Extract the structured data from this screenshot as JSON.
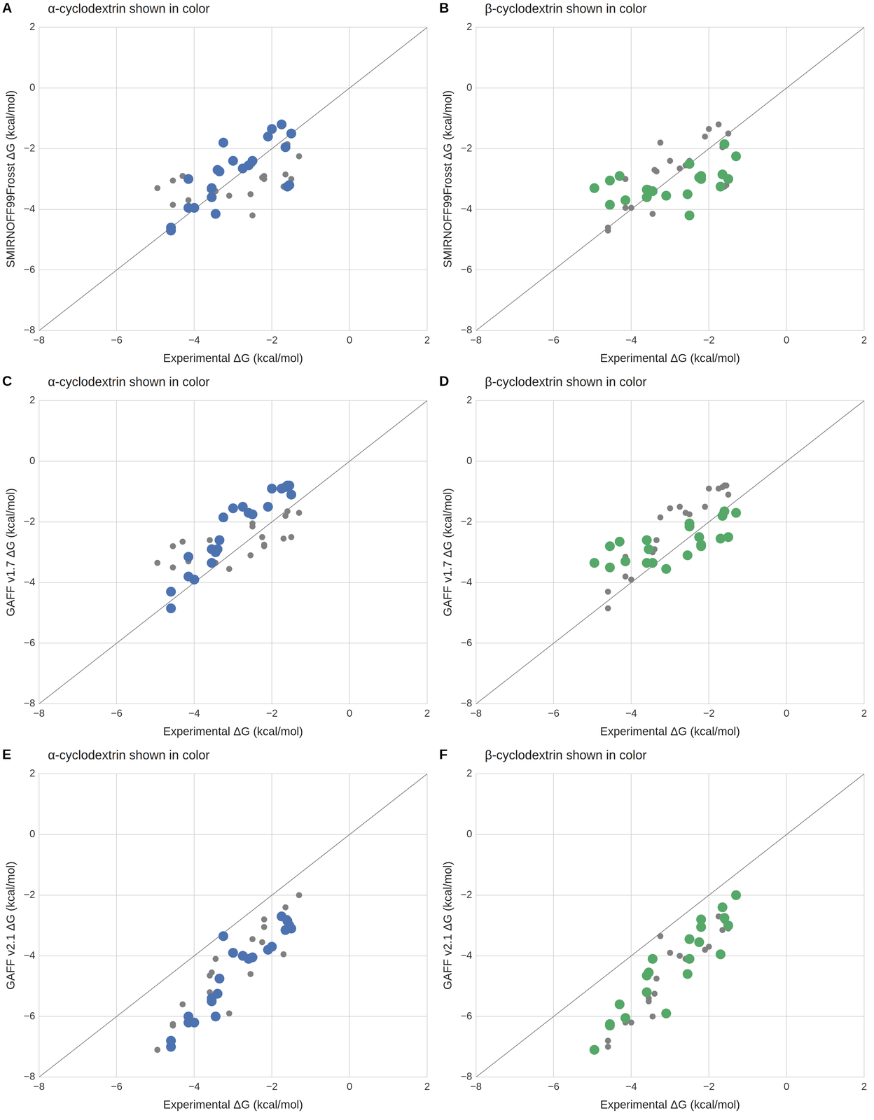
{
  "chart_data": [
    {
      "type": "scatter",
      "panel": "A",
      "title": "α-cyclodextrin shown in color",
      "x_label": "Experimental ΔG (kcal/mol)",
      "y_label": "SMIRNOFF99Frosst ΔG (kcal/mol)",
      "xlim": [
        -8,
        2
      ],
      "ylim": [
        -8,
        2
      ],
      "xticks": [
        {
          "value": -8,
          "label": "−8"
        },
        {
          "value": -6,
          "label": "−6"
        },
        {
          "value": -4,
          "label": "−4"
        },
        {
          "value": -2,
          "label": "−2"
        },
        0,
        2
      ],
      "yticks": [
        {
          "value": -8,
          "label": "−8"
        },
        {
          "value": -6,
          "label": "−6"
        },
        {
          "value": -4,
          "label": "−4"
        },
        {
          "value": -2,
          "label": "−2"
        },
        0,
        2
      ],
      "grid": true,
      "series": [
        {
          "color": "#808080",
          "x": [
            -4.95,
            -4.55,
            -4.55,
            -4.3,
            -4.15,
            -3.6,
            -3.6,
            -3.45,
            -3.55,
            -3.1,
            -2.55,
            -2.5,
            -2.5,
            -2.25,
            -2.2,
            -2.2,
            -1.7,
            -1.65,
            -1.6,
            -1.5,
            -1.3
          ],
          "values": [
            -3.3,
            -3.05,
            -3.85,
            -2.9,
            -3.7,
            -3.35,
            -3.6,
            -3.4,
            -3.45,
            -3.55,
            -3.5,
            -2.5,
            -4.2,
            -2.95,
            -2.9,
            -3.0,
            -3.25,
            -2.85,
            -1.85,
            -3.0,
            -2.25
          ]
        },
        {
          "color": "#4c72b0",
          "x": [
            -4.6,
            -4.6,
            -4.15,
            -4.15,
            -4.0,
            -3.55,
            -3.55,
            -3.45,
            -3.4,
            -3.35,
            -3.25,
            -3.0,
            -2.75,
            -2.6,
            -2.5,
            -2.1,
            -2.0,
            -1.75,
            -1.65,
            -1.6,
            -1.5,
            -1.55
          ],
          "values": [
            -4.6,
            -4.7,
            -3.0,
            -3.95,
            -3.95,
            -3.3,
            -3.6,
            -4.15,
            -2.7,
            -2.75,
            -1.8,
            -2.4,
            -2.65,
            -2.55,
            -2.4,
            -1.6,
            -1.35,
            -1.2,
            -1.95,
            -3.25,
            -1.5,
            -3.2
          ]
        }
      ]
    },
    {
      "type": "scatter",
      "panel": "B",
      "title": "β-cyclodextrin shown in color",
      "x_label": "Experimental ΔG (kcal/mol)",
      "y_label": "SMIRNOFF99Frosst ΔG (kcal/mol)",
      "xlim": [
        -8,
        2
      ],
      "ylim": [
        -8,
        2
      ],
      "xticks": [
        {
          "value": -8,
          "label": "−8"
        },
        {
          "value": -6,
          "label": "−6"
        },
        {
          "value": -4,
          "label": "−4"
        },
        {
          "value": -2,
          "label": "−2"
        },
        0,
        2
      ],
      "yticks": [
        {
          "value": -8,
          "label": "−8"
        },
        {
          "value": -6,
          "label": "−6"
        },
        {
          "value": -4,
          "label": "−4"
        },
        {
          "value": -2,
          "label": "−2"
        },
        0,
        2
      ],
      "grid": true,
      "series": [
        {
          "color": "#808080",
          "x": [
            -4.6,
            -4.6,
            -4.15,
            -4.15,
            -4.0,
            -3.55,
            -3.55,
            -3.45,
            -3.4,
            -3.35,
            -3.25,
            -3.0,
            -2.75,
            -2.6,
            -2.5,
            -2.1,
            -2.0,
            -1.75,
            -1.65,
            -1.6,
            -1.5,
            -1.55
          ],
          "values": [
            -4.6,
            -4.7,
            -3.0,
            -3.95,
            -3.95,
            -3.3,
            -3.6,
            -4.15,
            -2.7,
            -2.75,
            -1.8,
            -2.4,
            -2.65,
            -2.55,
            -2.4,
            -1.6,
            -1.35,
            -1.2,
            -1.95,
            -3.25,
            -1.5,
            -3.2
          ]
        },
        {
          "color": "#55a868",
          "x": [
            -4.95,
            -4.55,
            -4.55,
            -4.3,
            -4.15,
            -3.6,
            -3.6,
            -3.45,
            -3.55,
            -3.1,
            -2.55,
            -2.5,
            -2.5,
            -2.25,
            -2.2,
            -2.2,
            -1.7,
            -1.65,
            -1.6,
            -1.5,
            -1.3
          ],
          "values": [
            -3.3,
            -3.05,
            -3.85,
            -2.9,
            -3.7,
            -3.35,
            -3.6,
            -3.4,
            -3.45,
            -3.55,
            -3.5,
            -2.5,
            -4.2,
            -2.95,
            -2.9,
            -3.0,
            -3.25,
            -2.85,
            -1.85,
            -3.0,
            -2.25
          ]
        }
      ]
    },
    {
      "type": "scatter",
      "panel": "C",
      "title": "α-cyclodextrin shown in color",
      "x_label": "Experimental ΔG (kcal/mol)",
      "y_label": "GAFF v1.7 ΔG (kcal/mol)",
      "xlim": [
        -8,
        2
      ],
      "ylim": [
        -8,
        2
      ],
      "xticks": [
        {
          "value": -8,
          "label": "−8"
        },
        {
          "value": -6,
          "label": "−6"
        },
        {
          "value": -4,
          "label": "−4"
        },
        {
          "value": -2,
          "label": "−2"
        },
        0,
        2
      ],
      "yticks": [
        {
          "value": -8,
          "label": "−8"
        },
        {
          "value": -6,
          "label": "−6"
        },
        {
          "value": -4,
          "label": "−4"
        },
        {
          "value": -2,
          "label": "−2"
        },
        0,
        2
      ],
      "grid": true,
      "series": [
        {
          "color": "#808080",
          "x": [
            -4.95,
            -4.55,
            -4.55,
            -4.3,
            -4.15,
            -3.6,
            -3.6,
            -3.45,
            -3.55,
            -3.1,
            -2.55,
            -2.5,
            -2.5,
            -2.25,
            -2.2,
            -2.2,
            -1.7,
            -1.65,
            -1.6,
            -1.5,
            -1.3
          ],
          "values": [
            -3.35,
            -2.8,
            -3.5,
            -2.65,
            -3.3,
            -2.6,
            -3.35,
            -3.35,
            -2.9,
            -3.55,
            -3.1,
            -2.05,
            -2.15,
            -2.5,
            -2.75,
            -2.8,
            -2.55,
            -1.8,
            -1.65,
            -2.5,
            -1.7
          ]
        },
        {
          "color": "#4c72b0",
          "x": [
            -4.6,
            -4.6,
            -4.15,
            -4.15,
            -4.0,
            -3.55,
            -3.55,
            -3.45,
            -3.4,
            -3.35,
            -3.25,
            -3.0,
            -2.75,
            -2.6,
            -2.5,
            -2.1,
            -2.0,
            -1.75,
            -1.65,
            -1.6,
            -1.5,
            -1.55
          ],
          "values": [
            -4.3,
            -4.85,
            -3.15,
            -3.8,
            -3.9,
            -2.9,
            -3.35,
            -3.0,
            -2.9,
            -2.6,
            -1.85,
            -1.55,
            -1.5,
            -1.7,
            -1.75,
            -1.5,
            -0.9,
            -0.9,
            -0.85,
            -0.8,
            -1.1,
            -0.8
          ]
        }
      ]
    },
    {
      "type": "scatter",
      "panel": "D",
      "title": "β-cyclodextrin shown in color",
      "x_label": "Experimental ΔG (kcal/mol)",
      "y_label": "GAFF v1.7 ΔG (kcal/mol)",
      "xlim": [
        -8,
        2
      ],
      "ylim": [
        -8,
        2
      ],
      "xticks": [
        {
          "value": -8,
          "label": "−8"
        },
        {
          "value": -6,
          "label": "−6"
        },
        {
          "value": -4,
          "label": "−4"
        },
        {
          "value": -2,
          "label": "−2"
        },
        0,
        2
      ],
      "yticks": [
        {
          "value": -8,
          "label": "−8"
        },
        {
          "value": -6,
          "label": "−6"
        },
        {
          "value": -4,
          "label": "−4"
        },
        {
          "value": -2,
          "label": "−2"
        },
        0,
        2
      ],
      "grid": true,
      "series": [
        {
          "color": "#808080",
          "x": [
            -4.6,
            -4.6,
            -4.15,
            -4.15,
            -4.0,
            -3.55,
            -3.55,
            -3.45,
            -3.4,
            -3.35,
            -3.25,
            -3.0,
            -2.75,
            -2.6,
            -2.5,
            -2.1,
            -2.0,
            -1.75,
            -1.65,
            -1.6,
            -1.5,
            -1.55
          ],
          "values": [
            -4.3,
            -4.85,
            -3.15,
            -3.8,
            -3.9,
            -2.9,
            -3.35,
            -3.0,
            -2.9,
            -2.6,
            -1.85,
            -1.55,
            -1.5,
            -1.7,
            -1.75,
            -1.5,
            -0.9,
            -0.9,
            -0.85,
            -0.8,
            -1.1,
            -0.8
          ]
        },
        {
          "color": "#55a868",
          "x": [
            -4.95,
            -4.55,
            -4.55,
            -4.3,
            -4.15,
            -3.6,
            -3.6,
            -3.45,
            -3.55,
            -3.1,
            -2.55,
            -2.5,
            -2.5,
            -2.25,
            -2.2,
            -2.2,
            -1.7,
            -1.65,
            -1.6,
            -1.5,
            -1.3
          ],
          "values": [
            -3.35,
            -2.8,
            -3.5,
            -2.65,
            -3.3,
            -2.6,
            -3.35,
            -3.35,
            -2.9,
            -3.55,
            -3.1,
            -2.05,
            -2.15,
            -2.5,
            -2.75,
            -2.8,
            -2.55,
            -1.8,
            -1.65,
            -2.5,
            -1.7
          ]
        }
      ]
    },
    {
      "type": "scatter",
      "panel": "E",
      "title": "α-cyclodextrin shown in color",
      "x_label": "Experimental ΔG (kcal/mol)",
      "y_label": "GAFF v2.1 ΔG (kcal/mol)",
      "xlim": [
        -8,
        2
      ],
      "ylim": [
        -8,
        2
      ],
      "xticks": [
        {
          "value": -8,
          "label": "−8"
        },
        {
          "value": -6,
          "label": "−6"
        },
        {
          "value": -4,
          "label": "−4"
        },
        {
          "value": -2,
          "label": "−2"
        },
        0,
        2
      ],
      "yticks": [
        {
          "value": -8,
          "label": "−8"
        },
        {
          "value": -6,
          "label": "−6"
        },
        {
          "value": -4,
          "label": "−4"
        },
        {
          "value": -2,
          "label": "−2"
        },
        0,
        2
      ],
      "grid": true,
      "series": [
        {
          "color": "#808080",
          "x": [
            -4.95,
            -4.55,
            -4.55,
            -4.3,
            -4.15,
            -3.6,
            -3.6,
            -3.45,
            -3.55,
            -3.1,
            -2.55,
            -2.5,
            -2.5,
            -2.25,
            -2.2,
            -2.2,
            -1.7,
            -1.65,
            -1.6,
            -1.5,
            -1.3
          ],
          "values": [
            -7.1,
            -6.3,
            -6.25,
            -5.6,
            -6.05,
            -4.65,
            -5.2,
            -4.1,
            -4.55,
            -5.9,
            -4.6,
            -3.45,
            -4.1,
            -3.55,
            -2.8,
            -3.05,
            -3.95,
            -2.4,
            -2.75,
            -3.0,
            -2.0
          ]
        },
        {
          "color": "#4c72b0",
          "x": [
            -4.6,
            -4.6,
            -4.15,
            -4.15,
            -4.0,
            -3.55,
            -3.55,
            -3.45,
            -3.4,
            -3.35,
            -3.25,
            -3.0,
            -2.75,
            -2.6,
            -2.5,
            -2.1,
            -2.0,
            -1.75,
            -1.65,
            -1.6,
            -1.5,
            -1.55
          ],
          "values": [
            -6.8,
            -7.0,
            -6.0,
            -6.2,
            -6.2,
            -5.4,
            -5.5,
            -6.0,
            -5.25,
            -4.75,
            -3.35,
            -3.9,
            -4.0,
            -4.1,
            -4.05,
            -3.8,
            -3.7,
            -2.7,
            -3.15,
            -2.85,
            -3.1,
            -3.0
          ]
        }
      ]
    },
    {
      "type": "scatter",
      "panel": "F",
      "title": "β-cyclodextrin shown in color",
      "x_label": "Experimental ΔG (kcal/mol)",
      "y_label": "GAFF v2.1 ΔG (kcal/mol)",
      "xlim": [
        -8,
        2
      ],
      "ylim": [
        -8,
        2
      ],
      "xticks": [
        {
          "value": -8,
          "label": "−8"
        },
        {
          "value": -6,
          "label": "−6"
        },
        {
          "value": -4,
          "label": "−4"
        },
        {
          "value": -2,
          "label": "−2"
        },
        0,
        2
      ],
      "yticks": [
        {
          "value": -8,
          "label": "−8"
        },
        {
          "value": -6,
          "label": "−6"
        },
        {
          "value": -4,
          "label": "−4"
        },
        {
          "value": -2,
          "label": "−2"
        },
        0,
        2
      ],
      "grid": true,
      "series": [
        {
          "color": "#808080",
          "x": [
            -4.6,
            -4.6,
            -4.15,
            -4.15,
            -4.0,
            -3.55,
            -3.55,
            -3.45,
            -3.4,
            -3.35,
            -3.25,
            -3.0,
            -2.75,
            -2.6,
            -2.5,
            -2.1,
            -2.0,
            -1.75,
            -1.65,
            -1.6,
            -1.5,
            -1.55
          ],
          "values": [
            -6.8,
            -7.0,
            -6.0,
            -6.2,
            -6.2,
            -5.4,
            -5.5,
            -6.0,
            -5.25,
            -4.75,
            -3.35,
            -3.9,
            -4.0,
            -4.1,
            -4.05,
            -3.8,
            -3.7,
            -2.7,
            -3.15,
            -2.85,
            -3.1,
            -3.0
          ]
        },
        {
          "color": "#55a868",
          "x": [
            -4.95,
            -4.55,
            -4.55,
            -4.3,
            -4.15,
            -3.6,
            -3.6,
            -3.45,
            -3.55,
            -3.1,
            -2.55,
            -2.5,
            -2.5,
            -2.25,
            -2.2,
            -2.2,
            -1.7,
            -1.65,
            -1.6,
            -1.5,
            -1.3
          ],
          "values": [
            -7.1,
            -6.3,
            -6.25,
            -5.6,
            -6.05,
            -4.65,
            -5.2,
            -4.1,
            -4.55,
            -5.9,
            -4.6,
            -3.45,
            -4.1,
            -3.55,
            -2.8,
            -3.05,
            -3.95,
            -2.4,
            -2.75,
            -3.0,
            -2.0
          ]
        }
      ]
    }
  ]
}
